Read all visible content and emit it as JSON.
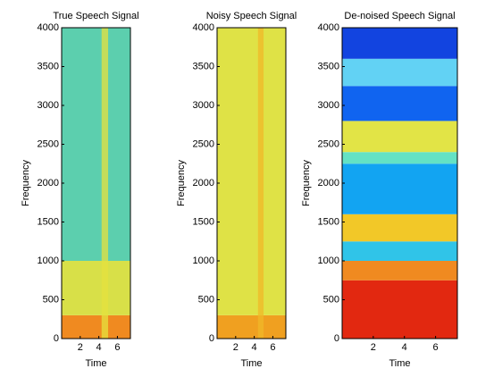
{
  "chart_data": [
    {
      "type": "spectrogram",
      "title": "True Speech Signal",
      "xlabel": "Time",
      "ylabel": "Frequency",
      "xlim": [
        0,
        7.4
      ],
      "xticks": [
        2,
        4,
        6
      ],
      "ylim": [
        0,
        4000
      ],
      "yticks": [
        0,
        500,
        1000,
        1500,
        2000,
        2500,
        3000,
        3500,
        4000
      ],
      "bands": [
        {
          "ylim": [
            0,
            300
          ],
          "color": "#f08a20"
        },
        {
          "ylim": [
            300,
            1000
          ],
          "color": "#d8e048"
        },
        {
          "ylim": [
            1000,
            4000
          ],
          "color": "#5ccfae"
        }
      ],
      "streaks": [
        {
          "xlim": [
            4.3,
            5.0
          ],
          "color": "#e6e23e"
        }
      ]
    },
    {
      "type": "spectrogram",
      "title": "Noisy Speech Signal",
      "xlabel": "Time",
      "ylabel": "Frequency",
      "xlim": [
        0,
        7.4
      ],
      "xticks": [
        2,
        4,
        6
      ],
      "ylim": [
        0,
        4000
      ],
      "yticks": [
        0,
        500,
        1000,
        1500,
        2000,
        2500,
        3000,
        3500,
        4000
      ],
      "bands": [
        {
          "ylim": [
            0,
            300
          ],
          "color": "#f0a020"
        },
        {
          "ylim": [
            300,
            4000
          ],
          "color": "#dfe246"
        }
      ],
      "streaks": [
        {
          "xlim": [
            4.4,
            5.0
          ],
          "color": "#f0b828"
        }
      ]
    },
    {
      "type": "spectrogram",
      "title": "De-noised Speech Signal",
      "xlabel": "Time",
      "ylabel": "Frequency",
      "xlim": [
        0,
        7.4
      ],
      "xticks": [
        2,
        4,
        6
      ],
      "ylim": [
        0,
        4000
      ],
      "yticks": [
        0,
        500,
        1000,
        1500,
        2000,
        2500,
        3000,
        3500,
        4000
      ],
      "bands": [
        {
          "ylim": [
            0,
            750
          ],
          "color": "#e22810"
        },
        {
          "ylim": [
            750,
            1000
          ],
          "color": "#f08a20"
        },
        {
          "ylim": [
            1000,
            1250
          ],
          "color": "#30c4e8"
        },
        {
          "ylim": [
            1250,
            1600
          ],
          "color": "#f2c828"
        },
        {
          "ylim": [
            1600,
            2250
          ],
          "color": "#12a4f2"
        },
        {
          "ylim": [
            2250,
            2400
          ],
          "color": "#64e2c4"
        },
        {
          "ylim": [
            2400,
            2800
          ],
          "color": "#e2e446"
        },
        {
          "ylim": [
            2800,
            3250
          ],
          "color": "#1064f0"
        },
        {
          "ylim": [
            3250,
            3600
          ],
          "color": "#62d2f4"
        },
        {
          "ylim": [
            3600,
            4000
          ],
          "color": "#1244e0"
        }
      ],
      "streaks": []
    }
  ]
}
